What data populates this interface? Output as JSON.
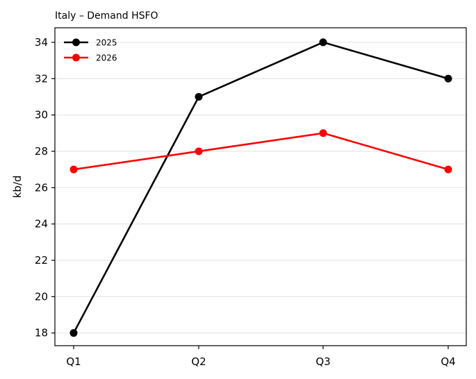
{
  "chart_data": {
    "type": "line",
    "title": "Italy – Demand HSFO",
    "xlabel": "",
    "ylabel": "kb/d",
    "categories": [
      "Q1",
      "Q2",
      "Q3",
      "Q4"
    ],
    "ylim": [
      17.3,
      34.8
    ],
    "yticks": [
      18,
      20,
      22,
      24,
      26,
      28,
      30,
      32,
      34
    ],
    "grid": "horizontal",
    "legend_position": "top-left",
    "series": [
      {
        "name": "2025",
        "color": "#000000",
        "values": [
          18,
          31,
          34,
          32
        ]
      },
      {
        "name": "2026",
        "color": "#ff0000",
        "values": [
          27,
          28,
          29,
          27
        ]
      }
    ]
  }
}
